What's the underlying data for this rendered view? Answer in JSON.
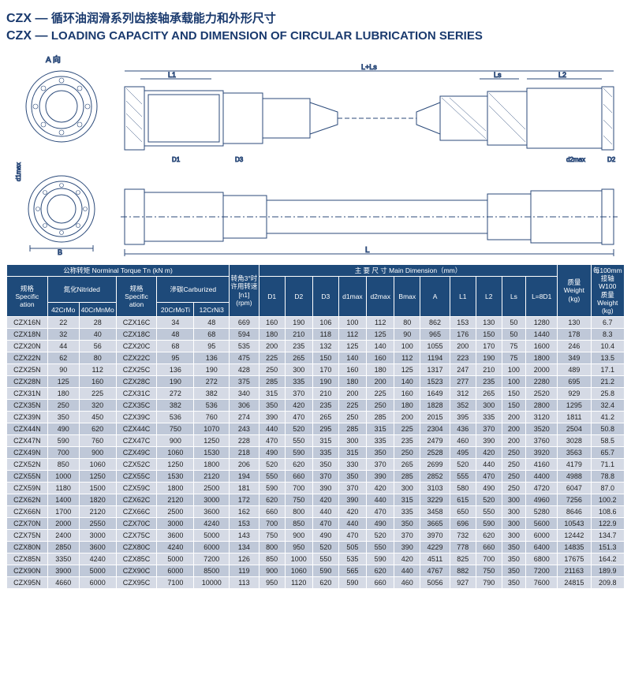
{
  "title_cn_prefix": "CZX — ",
  "title_cn": "循环油润滑系列齿接轴承载能力和外形尺寸",
  "title_en_prefix": "CZX — ",
  "title_en": "LOADING CAPACITY AND DIMENSION OF CIRCULAR LUBRICATION SERIES",
  "diagram_labels": {
    "a_view": "A 向",
    "b": "B",
    "d1max": "d1max",
    "l1": "L1",
    "l": "L",
    "l_ls": "L+Ls",
    "ls": "Ls",
    "l2": "L2",
    "d1": "D1",
    "d2": "D2",
    "d3": "D3",
    "d2max": "d2max"
  },
  "headers": {
    "nominal_torque": "公称转矩 Norminal Torque Tn (kN m)",
    "nitrided": "氮化Nitrided",
    "carburized": "滲碳Carburized",
    "spec": "规格\nSpecific\nation",
    "c42CrMo": "42CrMo",
    "c40CrMnMo": "40CrMnMo",
    "c20CrMoTi": "20CrMoTi",
    "c12CrNi3": "12CrNi3",
    "rpm": "转角3°时\n许用转速\n[n1]\n(rpm)",
    "main_dim": "主 要  尺 寸 Main Dimension（mm）",
    "d1": "D1",
    "d2": "D2",
    "d3": "D3",
    "d1max": "d1max",
    "d2max": "d2max",
    "bmax": "Bmax",
    "a": "A",
    "l1": "L1",
    "l2": "L2",
    "ls": "Ls",
    "l8d1": "L=8D1",
    "weight": "质量\nWeight\n(kg)",
    "w100": "每100mm\n接轴\nW100\n质量\nWeight\n(kg)"
  },
  "rows": [
    [
      "CZX16N",
      "22",
      "28",
      "CZX16C",
      "34",
      "48",
      "669",
      "160",
      "190",
      "106",
      "100",
      "112",
      "80",
      "862",
      "153",
      "130",
      "50",
      "1280",
      "130",
      "6.7"
    ],
    [
      "CZX18N",
      "32",
      "40",
      "CZX18C",
      "48",
      "68",
      "594",
      "180",
      "210",
      "118",
      "112",
      "125",
      "90",
      "965",
      "176",
      "150",
      "50",
      "1440",
      "178",
      "8.3"
    ],
    [
      "CZX20N",
      "44",
      "56",
      "CZX20C",
      "68",
      "95",
      "535",
      "200",
      "235",
      "132",
      "125",
      "140",
      "100",
      "1055",
      "200",
      "170",
      "75",
      "1600",
      "246",
      "10.4"
    ],
    [
      "CZX22N",
      "62",
      "80",
      "CZX22C",
      "95",
      "136",
      "475",
      "225",
      "265",
      "150",
      "140",
      "160",
      "112",
      "1194",
      "223",
      "190",
      "75",
      "1800",
      "349",
      "13.5"
    ],
    [
      "CZX25N",
      "90",
      "112",
      "CZX25C",
      "136",
      "190",
      "428",
      "250",
      "300",
      "170",
      "160",
      "180",
      "125",
      "1317",
      "247",
      "210",
      "100",
      "2000",
      "489",
      "17.1"
    ],
    [
      "CZX28N",
      "125",
      "160",
      "CZX28C",
      "190",
      "272",
      "375",
      "285",
      "335",
      "190",
      "180",
      "200",
      "140",
      "1523",
      "277",
      "235",
      "100",
      "2280",
      "695",
      "21.2"
    ],
    [
      "CZX31N",
      "180",
      "225",
      "CZX31C",
      "272",
      "382",
      "340",
      "315",
      "370",
      "210",
      "200",
      "225",
      "160",
      "1649",
      "312",
      "265",
      "150",
      "2520",
      "929",
      "25.8"
    ],
    [
      "CZX35N",
      "250",
      "320",
      "CZX35C",
      "382",
      "536",
      "306",
      "350",
      "420",
      "235",
      "225",
      "250",
      "180",
      "1828",
      "352",
      "300",
      "150",
      "2800",
      "1295",
      "32.4"
    ],
    [
      "CZX39N",
      "350",
      "450",
      "CZX39C",
      "536",
      "760",
      "274",
      "390",
      "470",
      "265",
      "250",
      "285",
      "200",
      "2015",
      "395",
      "335",
      "200",
      "3120",
      "1811",
      "41.2"
    ],
    [
      "CZX44N",
      "490",
      "620",
      "CZX44C",
      "750",
      "1070",
      "243",
      "440",
      "520",
      "295",
      "285",
      "315",
      "225",
      "2304",
      "436",
      "370",
      "200",
      "3520",
      "2504",
      "50.8"
    ],
    [
      "CZX47N",
      "590",
      "760",
      "CZX47C",
      "900",
      "1250",
      "228",
      "470",
      "550",
      "315",
      "300",
      "335",
      "235",
      "2479",
      "460",
      "390",
      "200",
      "3760",
      "3028",
      "58.5"
    ],
    [
      "CZX49N",
      "700",
      "900",
      "CZX49C",
      "1060",
      "1530",
      "218",
      "490",
      "590",
      "335",
      "315",
      "350",
      "250",
      "2528",
      "495",
      "420",
      "250",
      "3920",
      "3563",
      "65.7"
    ],
    [
      "CZX52N",
      "850",
      "1060",
      "CZX52C",
      "1250",
      "1800",
      "206",
      "520",
      "620",
      "350",
      "330",
      "370",
      "265",
      "2699",
      "520",
      "440",
      "250",
      "4160",
      "4179",
      "71.1"
    ],
    [
      "CZX55N",
      "1000",
      "1250",
      "CZX55C",
      "1530",
      "2120",
      "194",
      "550",
      "660",
      "370",
      "350",
      "390",
      "285",
      "2852",
      "555",
      "470",
      "250",
      "4400",
      "4988",
      "78.8"
    ],
    [
      "CZX59N",
      "1180",
      "1500",
      "CZX59C",
      "1800",
      "2500",
      "181",
      "590",
      "700",
      "390",
      "370",
      "420",
      "300",
      "3103",
      "580",
      "490",
      "250",
      "4720",
      "6047",
      "87.0"
    ],
    [
      "CZX62N",
      "1400",
      "1820",
      "CZX62C",
      "2120",
      "3000",
      "172",
      "620",
      "750",
      "420",
      "390",
      "440",
      "315",
      "3229",
      "615",
      "520",
      "300",
      "4960",
      "7256",
      "100.2"
    ],
    [
      "CZX66N",
      "1700",
      "2120",
      "CZX66C",
      "2500",
      "3600",
      "162",
      "660",
      "800",
      "440",
      "420",
      "470",
      "335",
      "3458",
      "650",
      "550",
      "300",
      "5280",
      "8646",
      "108.6"
    ],
    [
      "CZX70N",
      "2000",
      "2550",
      "CZX70C",
      "3000",
      "4240",
      "153",
      "700",
      "850",
      "470",
      "440",
      "490",
      "350",
      "3665",
      "696",
      "590",
      "300",
      "5600",
      "10543",
      "122.9"
    ],
    [
      "CZX75N",
      "2400",
      "3000",
      "CZX75C",
      "3600",
      "5000",
      "143",
      "750",
      "900",
      "490",
      "470",
      "520",
      "370",
      "3970",
      "732",
      "620",
      "300",
      "6000",
      "12442",
      "134.7"
    ],
    [
      "CZX80N",
      "2850",
      "3600",
      "CZX80C",
      "4240",
      "6000",
      "134",
      "800",
      "950",
      "520",
      "505",
      "550",
      "390",
      "4229",
      "778",
      "660",
      "350",
      "6400",
      "14835",
      "151.3"
    ],
    [
      "CZX85N",
      "3350",
      "4240",
      "CZX85C",
      "5000",
      "7200",
      "126",
      "850",
      "1000",
      "550",
      "535",
      "590",
      "420",
      "4511",
      "825",
      "700",
      "350",
      "6800",
      "17675",
      "164.2"
    ],
    [
      "CZX90N",
      "3900",
      "5000",
      "CZX90C",
      "6000",
      "8500",
      "119",
      "900",
      "1060",
      "590",
      "565",
      "620",
      "440",
      "4767",
      "882",
      "750",
      "350",
      "7200",
      "21163",
      "189.9"
    ],
    [
      "CZX95N",
      "4660",
      "6000",
      "CZX95C",
      "7100",
      "10000",
      "113",
      "950",
      "1120",
      "620",
      "590",
      "660",
      "460",
      "5056",
      "927",
      "790",
      "350",
      "7600",
      "24815",
      "209.8"
    ]
  ],
  "col_widths": [
    "44",
    "34",
    "40",
    "44",
    "40",
    "38",
    "32",
    "28",
    "30",
    "28",
    "30",
    "30",
    "28",
    "32",
    "28",
    "28",
    "26",
    "34",
    "36",
    "36"
  ],
  "colors": {
    "header_bg": "#1e4a7a",
    "header_fg": "#ffffff",
    "row_odd": "#d5dae5",
    "row_even": "#bfc8d8",
    "title_color": "#1a3a6e",
    "diagram_stroke": "#2b4a7a",
    "diagram_hatch": "#3a5a8a"
  }
}
